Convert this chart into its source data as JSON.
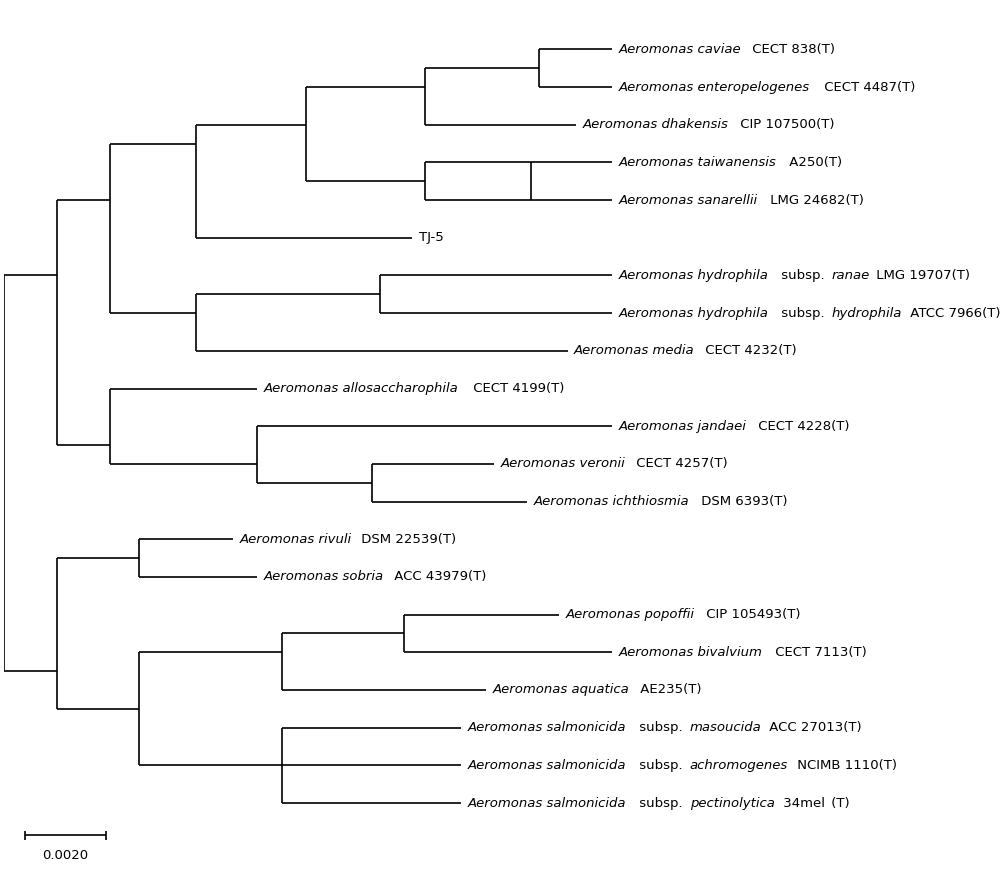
{
  "background_color": "#ffffff",
  "line_color": "#000000",
  "text_color": "#000000",
  "font_size": 9.5,
  "line_width": 1.2,
  "scale_bar_label": "0.0020",
  "label_parts": [
    [
      [
        "Aeromonas caviae",
        true
      ],
      [
        " CECT 838(T)",
        false
      ]
    ],
    [
      [
        "Aeromonas enteropelogenes",
        true
      ],
      [
        " CECT 4487(T)",
        false
      ]
    ],
    [
      [
        "Aeromonas dhakensis",
        true
      ],
      [
        " CIP 107500(T)",
        false
      ]
    ],
    [
      [
        "Aeromonas taiwanensis",
        true
      ],
      [
        " A250(T)",
        false
      ]
    ],
    [
      [
        "Aeromonas sanarellii",
        true
      ],
      [
        " LMG 24682(T)",
        false
      ]
    ],
    [
      [
        "TJ-5",
        false
      ]
    ],
    [
      [
        "Aeromonas hydrophila",
        true
      ],
      [
        " subsp. ",
        false
      ],
      [
        "ranae",
        true
      ],
      [
        " LMG 19707(T)",
        false
      ]
    ],
    [
      [
        "Aeromonas hydrophila",
        true
      ],
      [
        " subsp. ",
        false
      ],
      [
        "hydrophila",
        true
      ],
      [
        " ATCC 7966(T)",
        false
      ]
    ],
    [
      [
        "Aeromonas media",
        true
      ],
      [
        " CECT 4232(T)",
        false
      ]
    ],
    [
      [
        "Aeromonas allosaccharophila",
        true
      ],
      [
        " CECT 4199(T)",
        false
      ]
    ],
    [
      [
        "Aeromonas jandaei",
        true
      ],
      [
        " CECT 4228(T)",
        false
      ]
    ],
    [
      [
        "Aeromonas veronii",
        true
      ],
      [
        " CECT 4257(T)",
        false
      ]
    ],
    [
      [
        "Aeromonas ichthiosmia",
        true
      ],
      [
        " DSM 6393(T)",
        false
      ]
    ],
    [
      [
        "Aeromonas rivuli",
        true
      ],
      [
        " DSM 22539(T)",
        false
      ]
    ],
    [
      [
        "Aeromonas sobria",
        true
      ],
      [
        " ACC 43979(T)",
        false
      ]
    ],
    [
      [
        "Aeromonas popoffii",
        true
      ],
      [
        " CIP 105493(T)",
        false
      ]
    ],
    [
      [
        "Aeromonas bivalvium",
        true
      ],
      [
        " CECT 7113(T)",
        false
      ]
    ],
    [
      [
        "Aeromonas aquatica",
        true
      ],
      [
        " AE235(T)",
        false
      ]
    ],
    [
      [
        "Aeromonas salmonicida",
        true
      ],
      [
        " subsp. ",
        false
      ],
      [
        "masoucida",
        true
      ],
      [
        " ACC 27013(T)",
        false
      ]
    ],
    [
      [
        "Aeromonas salmonicida",
        true
      ],
      [
        " subsp. ",
        false
      ],
      [
        "achromogenes",
        true
      ],
      [
        " NCIMB 1110(T)",
        false
      ]
    ],
    [
      [
        "Aeromonas salmonicida",
        true
      ],
      [
        " subsp. ",
        false
      ],
      [
        "pectinolytica",
        true
      ],
      [
        " 34mel",
        false
      ],
      [
        " (T)",
        false
      ]
    ]
  ]
}
